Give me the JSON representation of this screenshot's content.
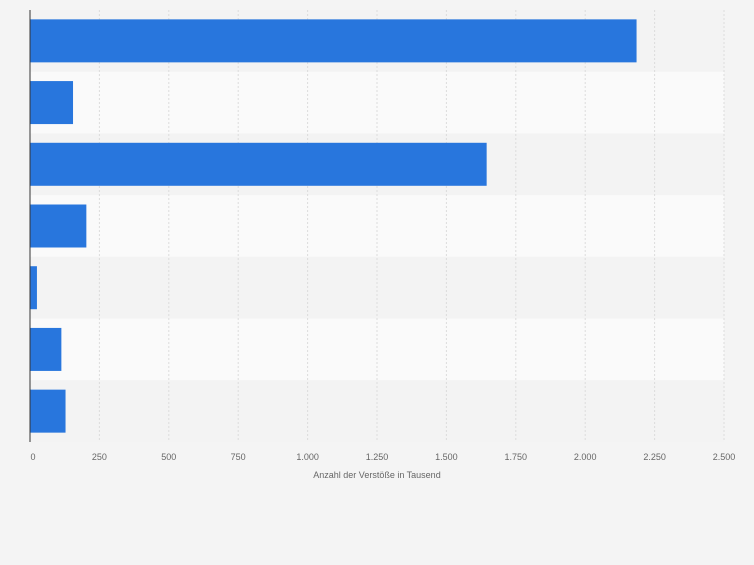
{
  "chart_data": {
    "type": "bar",
    "orientation": "horizontal",
    "categories": [
      "",
      "",
      "",
      "",
      "",
      "",
      ""
    ],
    "values": [
      2185,
      155,
      1645,
      203,
      25,
      113,
      128
    ],
    "xlabel": "Anzahl der Verstöße in Tausend",
    "ylabel": "",
    "xlim": [
      0,
      2500
    ],
    "x_ticks": [
      0,
      250,
      500,
      750,
      1000,
      1250,
      1500,
      1750,
      2000,
      2250,
      2500
    ],
    "x_tick_labels": [
      "0",
      "250",
      "500",
      "750",
      "1.000",
      "1.250",
      "1.500",
      "1.750",
      "2.000",
      "2.250",
      "2.500"
    ],
    "grid": true,
    "legend": "none",
    "colors": {
      "bar": "#2876dd",
      "background": "#f4f4f4",
      "band_light": "#fafafa",
      "band_dark": "#f3f3f3",
      "grid": "#dcdcdc",
      "axis": "#333333",
      "tick_text": "#666666"
    }
  }
}
